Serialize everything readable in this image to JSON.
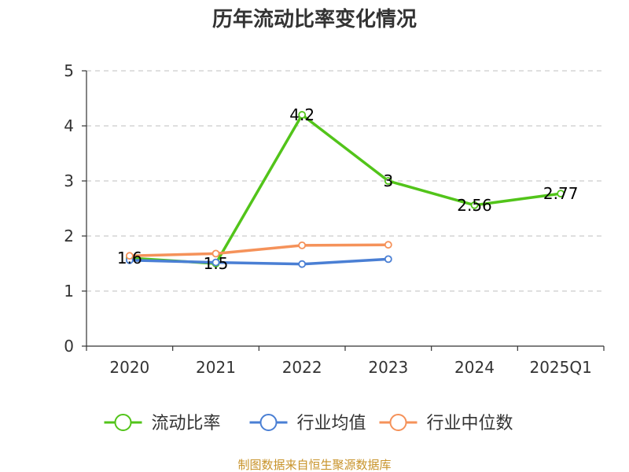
{
  "chart_data": {
    "type": "line",
    "title": "历年流动比率变化情况",
    "categories": [
      "2020",
      "2021",
      "2022",
      "2023",
      "2024",
      "2025Q1"
    ],
    "ylim": [
      0,
      5
    ],
    "yticks": [
      "0",
      "1",
      "2",
      "3",
      "4",
      "5"
    ],
    "grid": true,
    "legend_position": "bottom",
    "series": [
      {
        "name": "流动比率",
        "color": "#52c41a",
        "values": [
          1.6,
          1.5,
          4.2,
          3,
          2.56,
          2.77
        ],
        "labels": [
          "1.6",
          "1.5",
          "4.2",
          "3",
          "2.56",
          "2.77"
        ]
      },
      {
        "name": "行业均值",
        "color": "#4a7fd4",
        "values": [
          1.56,
          1.52,
          1.49,
          1.58,
          null,
          null
        ]
      },
      {
        "name": "行业中位数",
        "color": "#f5925a",
        "values": [
          1.64,
          1.68,
          1.83,
          1.84,
          null,
          null
        ]
      }
    ]
  },
  "source": {
    "text": "制图数据来自恒生聚源数据库",
    "color": "#c8932a"
  }
}
